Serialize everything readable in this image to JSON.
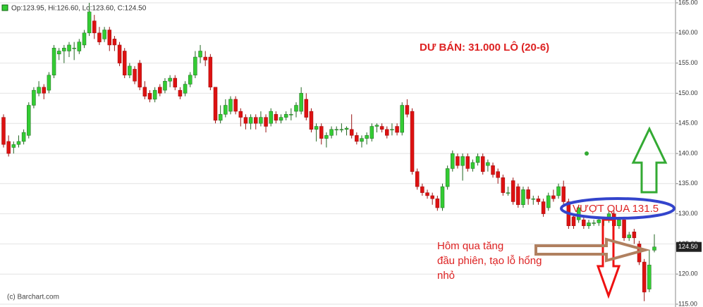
{
  "chart_data": {
    "type": "candlestick",
    "header": "Op:123.95, Hi:126.60, Lo:123.60, C:124.50",
    "credit": "(c) Barchart.com",
    "last_price_label": "124.50",
    "annotations": [
      "DƯ BÁN: 31.000 LÔ (20-6)",
      "VƯỢT QUA 131.5",
      "Hôm qua tăng",
      "đầu phiên, tạo lỗ hổng",
      "nhỏ"
    ],
    "up_color": "#33cc33",
    "down_color": "#dd1111",
    "ylim": [
      115,
      165
    ],
    "yticks": [
      {
        "value": 115,
        "label": "115.00"
      },
      {
        "value": 120,
        "label": "120.00"
      },
      {
        "value": 125,
        "label": "125.00"
      },
      {
        "value": 130,
        "label": "130.00"
      },
      {
        "value": 135,
        "label": "135.00"
      },
      {
        "value": 140,
        "label": "140.00"
      },
      {
        "value": 145,
        "label": "145.00"
      },
      {
        "value": 150,
        "label": "150.00"
      },
      {
        "value": 155,
        "label": "155.00"
      },
      {
        "value": 160,
        "label": "160.00"
      },
      {
        "value": 165,
        "label": "165.00"
      }
    ],
    "grid": true,
    "open": [
      146,
      142,
      141,
      141.5,
      142,
      143,
      148,
      150,
      151,
      150.5,
      153,
      156.5,
      157,
      157,
      157.5,
      157,
      158,
      160,
      162,
      160,
      159,
      160.5,
      159,
      158,
      157,
      153,
      154,
      155,
      151,
      150,
      149,
      151,
      150.5,
      152,
      152.5,
      150.5,
      150,
      151.5,
      153,
      156,
      156,
      156,
      151,
      145.5,
      146.5,
      147,
      149,
      147,
      146,
      145,
      146,
      145,
      146,
      145,
      146.5,
      145.5,
      146,
      146.5,
      147,
      147,
      149,
      147,
      144,
      144.5,
      142.5,
      143,
      144,
      144,
      144,
      144,
      143,
      142,
      142.5,
      142.5,
      144.5,
      144.5,
      144,
      144,
      144.5,
      143.5,
      148,
      147,
      137,
      134.5,
      133.5,
      133,
      132.5,
      131,
      134.5,
      137.5,
      139.5,
      138,
      139.5,
      137.5,
      138.5,
      139.5,
      138,
      138,
      137,
      136,
      133.5,
      135.5,
      134.5,
      131.5,
      134,
      132.5,
      132.5,
      132,
      131,
      133,
      133,
      134.5,
      132,
      129.5,
      129,
      129,
      128,
      128.5,
      128.5,
      129,
      129,
      130,
      128,
      129,
      126,
      127,
      125,
      122,
      117.5,
      123.95
    ],
    "high": [
      146.5,
      143,
      142,
      143,
      144,
      148.5,
      151,
      152,
      151.5,
      153.5,
      158,
      157.5,
      158,
      158.5,
      158.5,
      159,
      160.5,
      165,
      163,
      161,
      161,
      161,
      159.5,
      158.5,
      157.5,
      155,
      154.5,
      155.5,
      152,
      150.5,
      151,
      151.5,
      152.5,
      153,
      153,
      151,
      152,
      153.5,
      157,
      158,
      157,
      156.5,
      151,
      148,
      149,
      149.5,
      149.5,
      147.5,
      146.5,
      146.5,
      146.5,
      147,
      146.5,
      147.5,
      147,
      146.5,
      147,
      147.5,
      148.5,
      151,
      150,
      147.5,
      145,
      145,
      143.5,
      144.5,
      144.5,
      145,
      144.5,
      146.5,
      143.5,
      143,
      143.5,
      145,
      145,
      145,
      144.5,
      145,
      145,
      148.5,
      149,
      147.5,
      137.5,
      135,
      134,
      133.5,
      133,
      135,
      138,
      140.5,
      140,
      140,
      140,
      139,
      140,
      140,
      139,
      138.5,
      137.5,
      136.5,
      134.5,
      136,
      135,
      134.5,
      134.5,
      133,
      133,
      132.5,
      133.5,
      134,
      135,
      135.5,
      132.5,
      130,
      131.5,
      129.5,
      129,
      129,
      129.5,
      129.5,
      130.5,
      130.5,
      129.5,
      129.5,
      127,
      127.5,
      125.5,
      122.5,
      124,
      126.6
    ],
    "low": [
      141,
      139.5,
      140,
      141,
      141.5,
      142.5,
      147.5,
      149.5,
      149,
      150,
      152.5,
      155.5,
      155,
      156,
      155.5,
      156.5,
      157.5,
      159.5,
      159,
      158,
      158.5,
      157,
      157,
      154.5,
      152.5,
      152.5,
      151.5,
      150.5,
      149,
      148.5,
      148.5,
      149.5,
      150,
      151,
      150.5,
      149,
      149.5,
      151,
      152.5,
      155,
      154.5,
      150.5,
      145,
      145,
      146,
      146.5,
      146.5,
      144.5,
      144,
      144,
      144,
      144.5,
      143.5,
      144.5,
      145,
      145,
      145.5,
      145.5,
      146,
      146.5,
      145.5,
      143.5,
      142,
      141.5,
      141,
      142.5,
      143,
      143.5,
      143,
      142.5,
      141.5,
      141,
      141.5,
      142,
      143.5,
      143.5,
      142.5,
      143,
      143,
      143,
      146,
      136.5,
      134,
      133,
      132.5,
      131.5,
      130.5,
      130.5,
      134,
      137,
      137.5,
      135.5,
      137,
      137,
      138,
      136.5,
      137,
      136,
      135,
      133,
      133,
      131.5,
      131,
      131,
      131.5,
      131.5,
      131.5,
      129.5,
      130.5,
      132,
      132.5,
      131.5,
      127.5,
      127.5,
      128.5,
      127.5,
      127.5,
      128,
      128,
      128,
      128.5,
      127.5,
      127.5,
      125.5,
      125.5,
      125,
      121.5,
      115.5,
      117,
      123.6
    ],
    "close": [
      141.5,
      140,
      141.5,
      142,
      143.5,
      148,
      150.5,
      151,
      150,
      153,
      157.5,
      157,
      157.5,
      158,
      157.5,
      158.5,
      160,
      163.5,
      160,
      158.5,
      160.5,
      158,
      158,
      155,
      153,
      154.5,
      152,
      151,
      149.5,
      149,
      150.5,
      150,
      152,
      152.5,
      151,
      149.5,
      151.5,
      153,
      156,
      157,
      155.5,
      151,
      145.5,
      146.5,
      148,
      149,
      147,
      146,
      145,
      146,
      145,
      146,
      144.5,
      147,
      145.5,
      146,
      146.5,
      146.5,
      148,
      150,
      146,
      144,
      144.5,
      142.5,
      143,
      144,
      144,
      144,
      144.2,
      143,
      142,
      142.5,
      143,
      144.5,
      144.7,
      144,
      143,
      144,
      143.5,
      148,
      146.5,
      137,
      134.5,
      133.5,
      133,
      132.5,
      131,
      134.5,
      137.5,
      140,
      138,
      139.5,
      137.5,
      138.5,
      139.5,
      137,
      138.5,
      136.5,
      136,
      133.5,
      133.5,
      132,
      131.5,
      134,
      132.5,
      132.5,
      132,
      130,
      133,
      132.5,
      134.5,
      132,
      128,
      128,
      131,
      128,
      128.5,
      128.5,
      129,
      129,
      130,
      128,
      129,
      126,
      126.5,
      126,
      122,
      117,
      121.5,
      124.5
    ]
  }
}
